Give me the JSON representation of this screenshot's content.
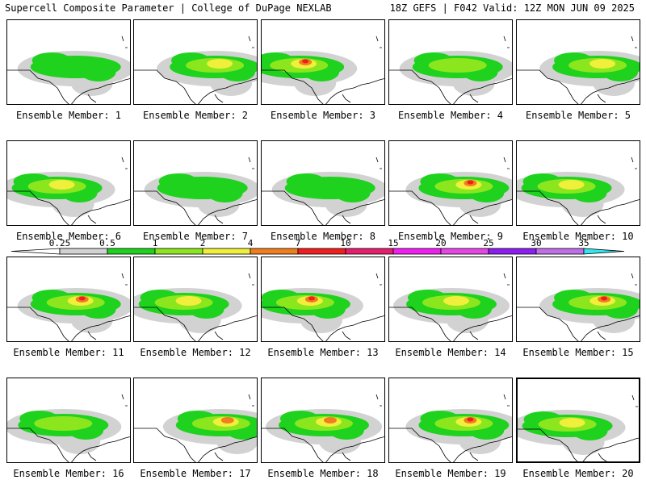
{
  "header": {
    "left": "Supercell Composite Parameter | College of DuPage NEXLAB",
    "right": "18Z GEFS | F042 Valid: 12Z MON JUN 09 2025"
  },
  "legend": {
    "labels": [
      "0.25",
      "0.5",
      "1",
      "2",
      "4",
      "7",
      "10",
      "15",
      "20",
      "25",
      "30",
      "35"
    ],
    "colors": [
      "#d2d2d2",
      "#1ed21e",
      "#8ce61e",
      "#f0f03c",
      "#f07e1e",
      "#f01e1e",
      "#e61e6e",
      "#f01ef0",
      "#e646e6",
      "#8c1ef0",
      "#be6ee6",
      "#32e6f0"
    ]
  },
  "member_prefix": "Ensemble Member: ",
  "members": [
    {
      "id": "1",
      "peak": 1,
      "cx": 0.55
    },
    {
      "id": "2",
      "peak": 3,
      "cx": 0.65
    },
    {
      "id": "3",
      "peak": 5,
      "cx": 0.3
    },
    {
      "id": "4",
      "peak": 2,
      "cx": 0.55
    },
    {
      "id": "5",
      "peak": 3,
      "cx": 0.65
    },
    {
      "id": "6",
      "peak": 3,
      "cx": 0.4
    },
    {
      "id": "7",
      "peak": 1,
      "cx": 0.55
    },
    {
      "id": "8",
      "peak": 1,
      "cx": 0.55
    },
    {
      "id": "9",
      "peak": 5,
      "cx": 0.6
    },
    {
      "id": "10",
      "peak": 3,
      "cx": 0.4
    },
    {
      "id": "11",
      "peak": 5,
      "cx": 0.55
    },
    {
      "id": "12",
      "peak": 3,
      "cx": 0.4
    },
    {
      "id": "13",
      "peak": 5,
      "cx": 0.35
    },
    {
      "id": "14",
      "peak": 3,
      "cx": 0.5
    },
    {
      "id": "15",
      "peak": 5,
      "cx": 0.65
    },
    {
      "id": "16",
      "peak": 2,
      "cx": 0.45
    },
    {
      "id": "17",
      "peak": 4,
      "cx": 0.7
    },
    {
      "id": "18",
      "peak": 4,
      "cx": 0.5
    },
    {
      "id": "19",
      "peak": 5,
      "cx": 0.6
    },
    {
      "id": "20",
      "peak": 3,
      "cx": 0.4
    }
  ]
}
